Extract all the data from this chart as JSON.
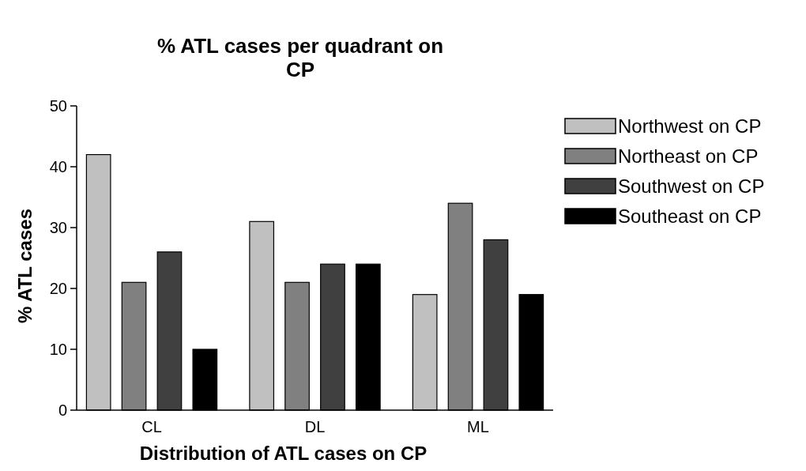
{
  "chart_data": {
    "type": "bar",
    "title": "% ATL cases per quadrant on CP",
    "xlabel": "Distribution of ATL cases on CP",
    "ylabel": "% ATL cases",
    "categories": [
      "CL",
      "DL",
      "ML"
    ],
    "series": [
      {
        "name": "Northwest on CP",
        "color": "#c0c0c0",
        "values": [
          42,
          31,
          19
        ]
      },
      {
        "name": "Northeast on CP",
        "color": "#808080",
        "values": [
          21,
          21,
          34
        ]
      },
      {
        "name": "Southwest on CP",
        "color": "#404040",
        "values": [
          26,
          24,
          28
        ]
      },
      {
        "name": "Southeast on CP",
        "color": "#000000",
        "values": [
          10,
          24,
          19
        ]
      }
    ],
    "ylim": [
      0,
      50
    ],
    "yticks": [
      0,
      10,
      20,
      30,
      40,
      50
    ],
    "grid": false,
    "legend": "right"
  }
}
